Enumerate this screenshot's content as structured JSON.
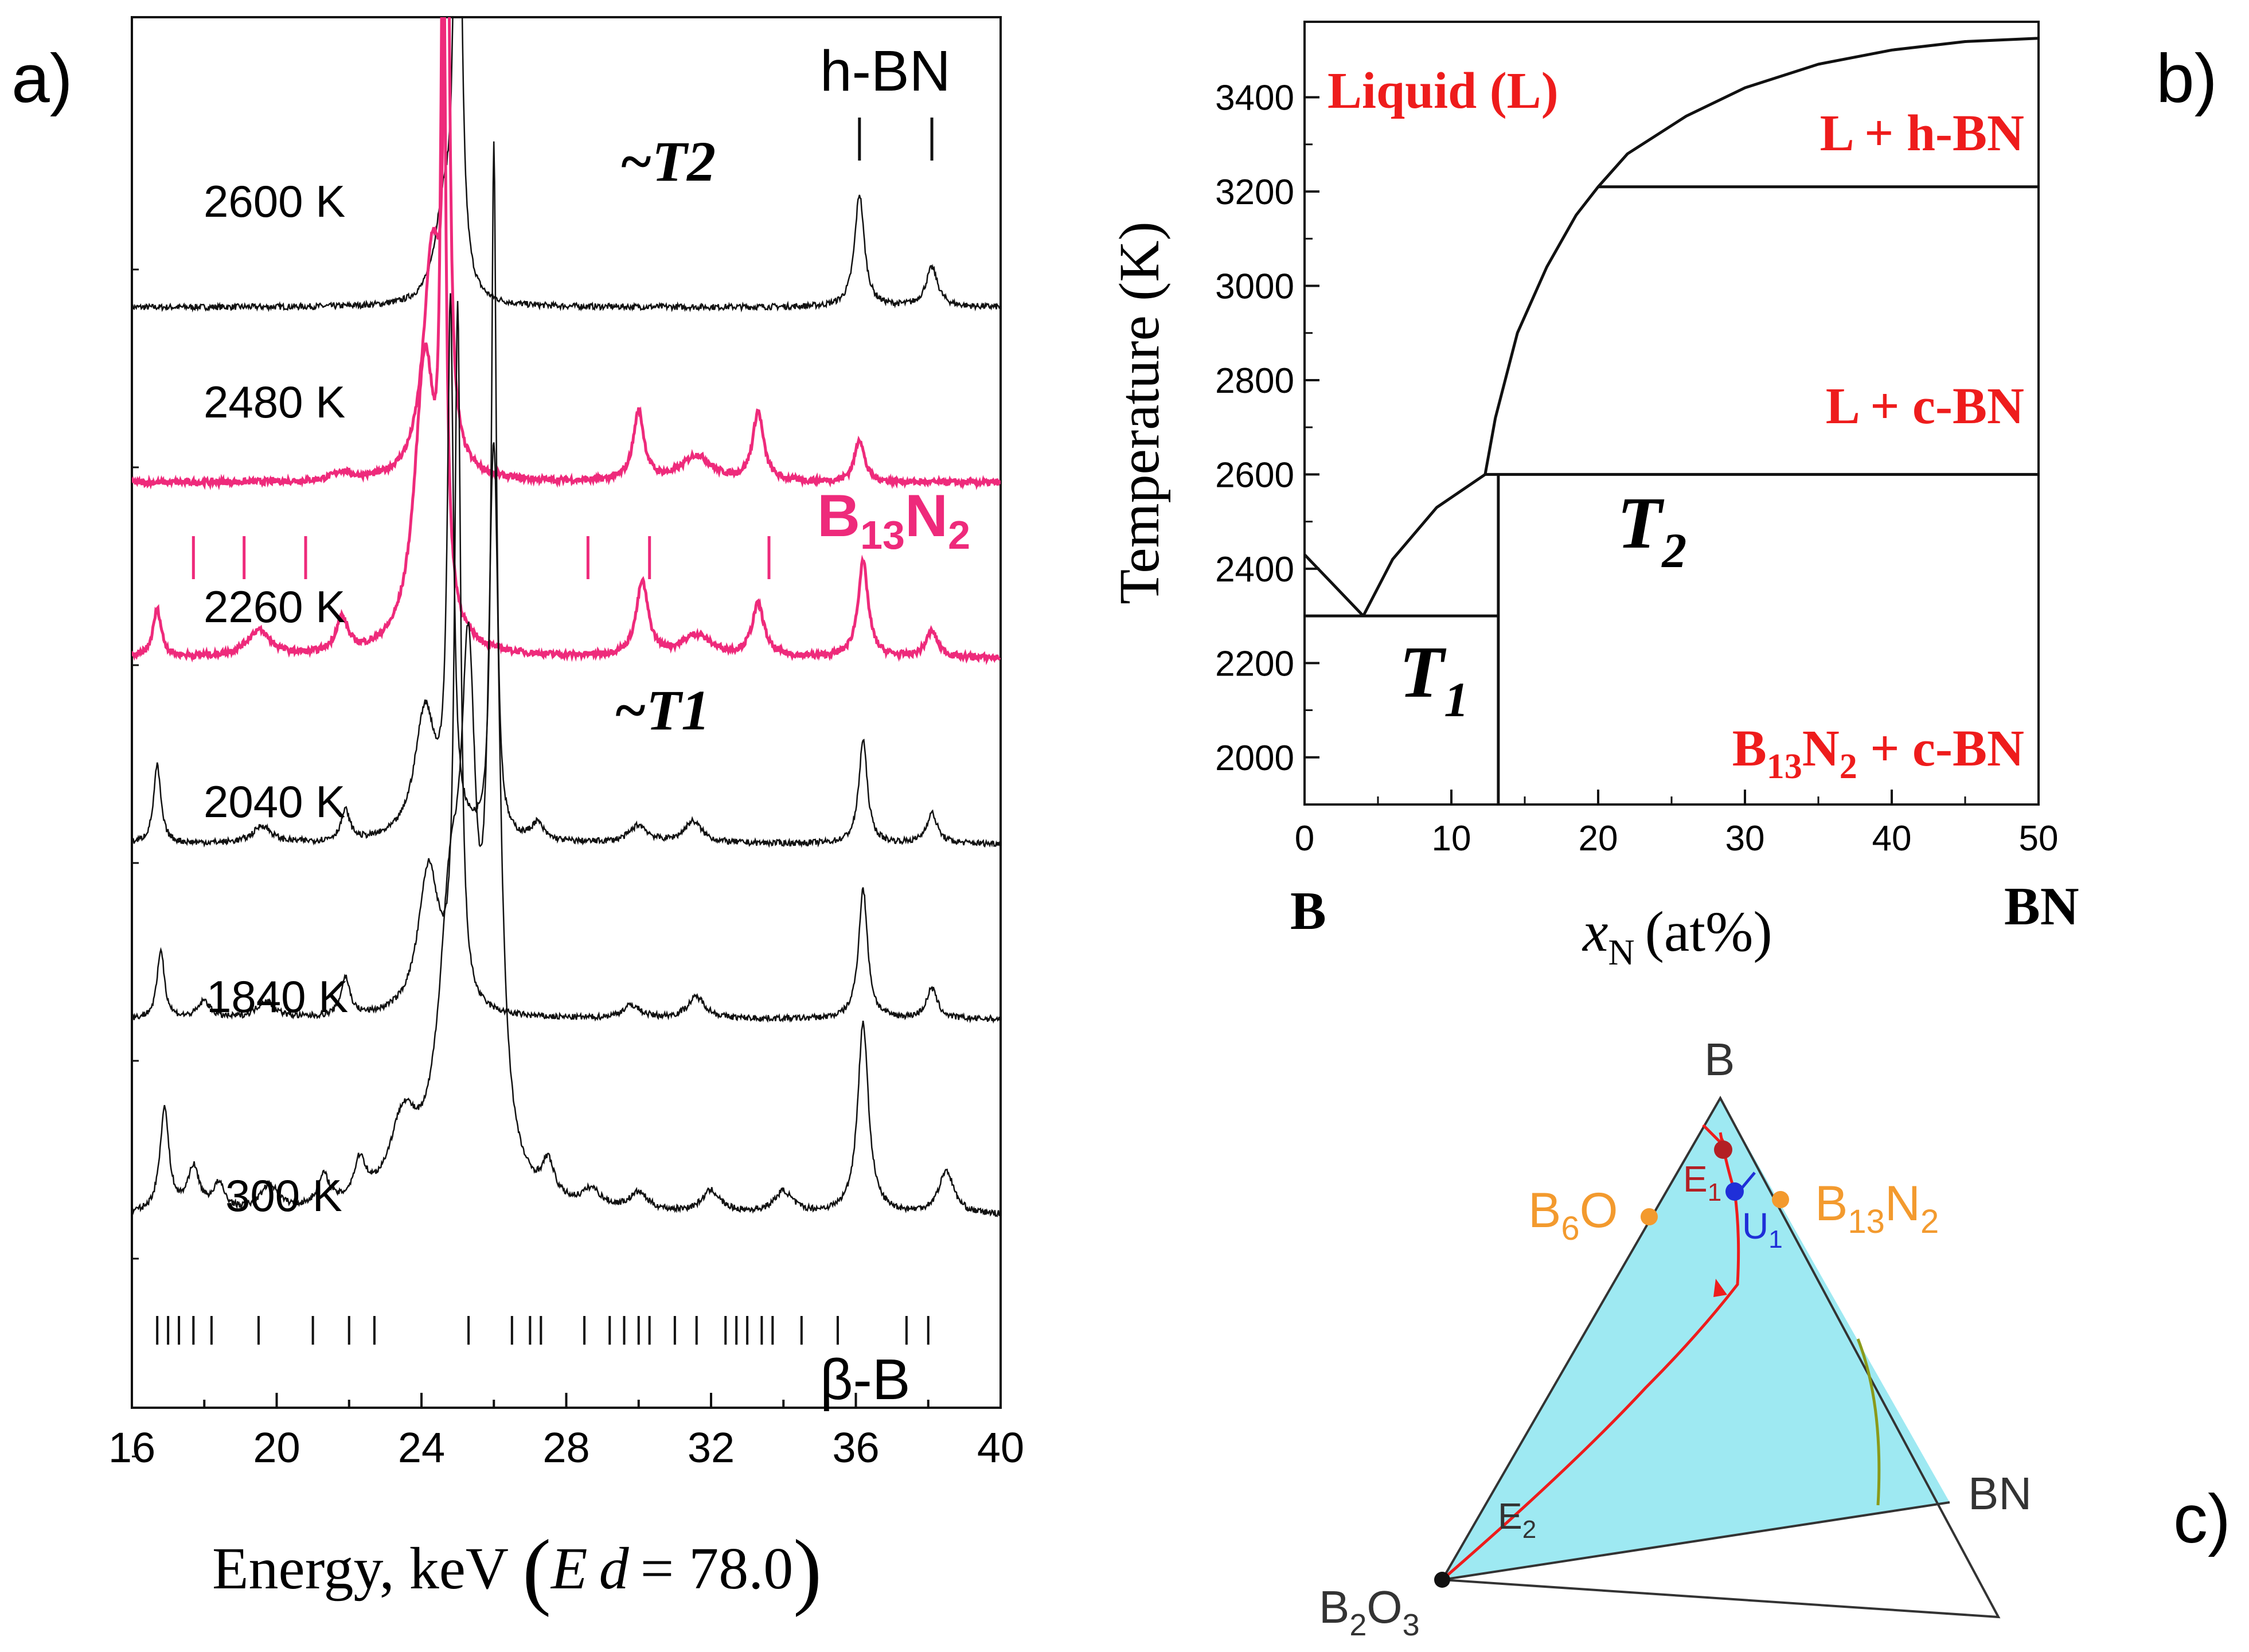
{
  "panels": {
    "a": {
      "label": "a)"
    },
    "b": {
      "label": "b)"
    },
    "c": {
      "label": "c)"
    }
  },
  "colors": {
    "ink": "#111111",
    "magenta": "#ee2a7b",
    "red": "#ee1c1c",
    "orange": "#f39a2e",
    "cyan": "#9ee9f2",
    "dark_red": "#b31f24",
    "blue": "#1f2fd8",
    "olive": "#8a9a1a"
  },
  "chart_data": [
    {
      "id": "spectra",
      "type": "line",
      "title": "",
      "xlabel_main": "Energy, keV",
      "xlabel_paren_left": "(",
      "xlabel_E": "E",
      "xlabel_d": "d",
      "xlabel_eq": "= 78.0",
      "xlabel_paren_right": ")",
      "ylabel": "",
      "xlim": [
        16,
        40
      ],
      "xticks": [
        16,
        20,
        24,
        28,
        32,
        36,
        40
      ],
      "series": [
        {
          "name": "2600 K",
          "offset": 4.4,
          "color": "ink",
          "peaks": [
            [
              24.6,
              1.0,
              0.28
            ],
            [
              25.0,
              8.0,
              0.1
            ],
            [
              36.1,
              1.3,
              0.16
            ],
            [
              38.1,
              0.45,
              0.2
            ]
          ]
        },
        {
          "name": "2480 K",
          "offset": 3.55,
          "color": "magenta",
          "peaks": [
            [
              24.3,
              2.6,
              0.3
            ],
            [
              24.7,
              8.0,
              0.08
            ],
            [
              30.0,
              0.8,
              0.18
            ],
            [
              31.6,
              0.3,
              0.5
            ],
            [
              33.3,
              0.8,
              0.18
            ],
            [
              36.1,
              0.5,
              0.16
            ],
            [
              21.8,
              0.1,
              0.3
            ]
          ]
        },
        {
          "name": "2260 K",
          "offset": 2.7,
          "color": "magenta",
          "peaks": [
            [
              16.7,
              0.55,
              0.14
            ],
            [
              19.5,
              0.3,
              0.4
            ],
            [
              21.8,
              0.4,
              0.2
            ],
            [
              24.1,
              3.4,
              0.35
            ],
            [
              24.6,
              8.0,
              0.08
            ],
            [
              30.1,
              0.85,
              0.2
            ],
            [
              31.6,
              0.25,
              0.5
            ],
            [
              33.3,
              0.6,
              0.2
            ],
            [
              36.2,
              1.1,
              0.17
            ],
            [
              38.1,
              0.3,
              0.2
            ]
          ]
        },
        {
          "name": "2040 K",
          "offset": 1.8,
          "color": "ink",
          "peaks": [
            [
              16.7,
              0.9,
              0.12
            ],
            [
              19.6,
              0.2,
              0.3
            ],
            [
              21.9,
              0.35,
              0.15
            ],
            [
              24.1,
              1.5,
              0.35
            ],
            [
              24.8,
              6.0,
              0.1
            ],
            [
              26.0,
              8.0,
              0.08
            ],
            [
              27.2,
              0.2,
              0.2
            ],
            [
              30.0,
              0.2,
              0.3
            ],
            [
              31.5,
              0.25,
              0.3
            ],
            [
              36.2,
              1.2,
              0.14
            ],
            [
              38.1,
              0.35,
              0.18
            ]
          ]
        },
        {
          "name": "1840 K",
          "offset": 0.95,
          "color": "ink",
          "peaks": [
            [
              16.8,
              0.8,
              0.12
            ],
            [
              18.0,
              0.2,
              0.2
            ],
            [
              19.7,
              0.2,
              0.3
            ],
            [
              21.9,
              0.45,
              0.15
            ],
            [
              24.2,
              1.7,
              0.35
            ],
            [
              25.0,
              8.0,
              0.1
            ],
            [
              29.8,
              0.15,
              0.3
            ],
            [
              31.6,
              0.25,
              0.3
            ],
            [
              36.2,
              1.5,
              0.15
            ],
            [
              38.1,
              0.35,
              0.18
            ]
          ]
        },
        {
          "name": "300 K",
          "offset": 0.0,
          "color": "ink",
          "peaks": [
            [
              16.9,
              1.2,
              0.15
            ],
            [
              17.7,
              0.5,
              0.2
            ],
            [
              18.4,
              0.3,
              0.2
            ],
            [
              19.8,
              0.3,
              0.3
            ],
            [
              21.3,
              0.35,
              0.2
            ],
            [
              22.3,
              0.45,
              0.2
            ],
            [
              23.5,
              0.9,
              0.45
            ],
            [
              24.8,
              3.0,
              0.4
            ],
            [
              25.3,
              5.0,
              0.25
            ],
            [
              26.0,
              8.0,
              0.2
            ],
            [
              27.5,
              0.4,
              0.2
            ],
            [
              28.7,
              0.2,
              0.3
            ],
            [
              30.0,
              0.2,
              0.3
            ],
            [
              32.0,
              0.25,
              0.3
            ],
            [
              34.0,
              0.25,
              0.3
            ],
            [
              36.2,
              2.2,
              0.18
            ],
            [
              38.5,
              0.5,
              0.25
            ]
          ]
        }
      ],
      "annotations": [
        {
          "text": "h-BN",
          "x": 37.0,
          "y": 5.45
        },
        {
          "text": "B13N2"
        },
        {
          "text": "β-B",
          "x": 37.3,
          "y": -0.55
        },
        {
          "text": "~T2"
        },
        {
          "text": "~T1"
        }
      ],
      "tick_sets": {
        "hBN": [
          36.1,
          38.1
        ],
        "B13N2": [
          17.7,
          19.1,
          20.8,
          28.6,
          30.3,
          33.6
        ],
        "betaB": [
          16.7,
          17.0,
          17.3,
          17.7,
          18.2,
          19.5,
          21.0,
          22.0,
          22.7,
          25.3,
          26.5,
          27.0,
          27.3,
          28.5,
          29.2,
          29.6,
          30.0,
          30.3,
          31.0,
          31.6,
          32.4,
          32.7,
          33.0,
          33.4,
          33.7,
          34.5,
          35.5,
          37.4,
          38.0
        ]
      }
    },
    {
      "id": "phase-diagram",
      "type": "line",
      "title": "",
      "xlabel_x": "x",
      "xlabel_sub": "N",
      "xlabel_unit": "(at%)",
      "ylabel": "Temperature (K)",
      "xlim": [
        0,
        50
      ],
      "ylim": [
        1900,
        3560
      ],
      "xticks": [
        0,
        10,
        20,
        30,
        40,
        50
      ],
      "yticks": [
        2000,
        2200,
        2400,
        2600,
        2800,
        3000,
        3200,
        3400
      ],
      "endpoints": {
        "left": "B",
        "right": "BN"
      },
      "regions": {
        "liquid": "Liquid (L)",
        "l_hbn": "L + h-BN",
        "l_cbn": "L + c-BN",
        "t2": "T",
        "t2_sub": "2",
        "t1": "T",
        "t1_sub": "1",
        "b13n2_cbn_a": "B",
        "b13n2_cbn_s1": "13",
        "b13n2_cbn_b": "N",
        "b13n2_cbn_s2": "2",
        "b13n2_cbn_c": " + c-BN"
      },
      "lines": {
        "liquidus_left": [
          [
            0,
            2430
          ],
          [
            4,
            2300
          ]
        ],
        "liquidus_mid": [
          [
            4,
            2300
          ],
          [
            6,
            2420
          ],
          [
            9,
            2530
          ],
          [
            12.3,
            2600
          ]
        ],
        "liquidus_upper": [
          [
            12.3,
            2600
          ],
          [
            13,
            2720
          ],
          [
            14.5,
            2900
          ],
          [
            16.5,
            3040
          ],
          [
            18.5,
            3150
          ],
          [
            20,
            3210
          ],
          [
            22,
            3280
          ],
          [
            26,
            3360
          ],
          [
            30,
            3420
          ],
          [
            35,
            3470
          ],
          [
            40,
            3500
          ],
          [
            45,
            3518
          ],
          [
            50,
            3525
          ]
        ],
        "eutectic_T1": [
          [
            0,
            2300
          ],
          [
            13.2,
            2300
          ]
        ],
        "peritectic_T2": [
          [
            12.3,
            2600
          ],
          [
            50,
            2600
          ]
        ],
        "hBN_boundary": [
          [
            20,
            3210
          ],
          [
            50,
            3210
          ]
        ],
        "b13n2_line": [
          [
            13.2,
            1900
          ],
          [
            13.2,
            2600
          ]
        ]
      }
    },
    {
      "id": "ternary",
      "type": "ternary",
      "vertices": {
        "B": "B",
        "BN": "BN",
        "B2O3": "B2O3"
      },
      "labels": {
        "b6o_a": "B",
        "b6o_s": "6",
        "b6o_b": "O",
        "b13n2_a": "B",
        "b13n2_s1": "13",
        "b13n2_b": "N",
        "b13n2_s2": "2",
        "e1": "E",
        "e1_s": "1",
        "u1": "U",
        "u1_s": "1",
        "e2": "E",
        "e2_s": "2",
        "bn": "BN",
        "b": "B",
        "b2o3_a": "B",
        "b2o3_s1": "2",
        "b2o3_b": "O",
        "b2o3_s2": "3"
      }
    }
  ]
}
